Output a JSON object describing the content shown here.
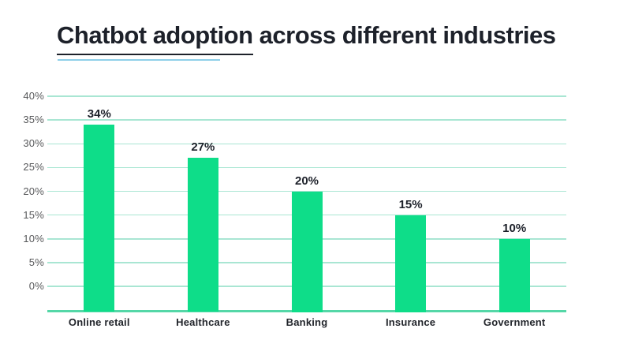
{
  "page": {
    "background_color": "#ffffff"
  },
  "title": {
    "underlined_part": "Chatbot adoption",
    "rest": " across different industries",
    "full_text": "Chatbot adoption across different industries",
    "text_color": "#1d212a",
    "underline_dark_color": "#1d212a",
    "underline_blue_color": "#8ecfe9"
  },
  "chart_data": {
    "type": "bar",
    "title": "Chatbot adoption across different industries",
    "categories": [
      "Online retail",
      "Healthcare",
      "Banking",
      "Insurance",
      "Government"
    ],
    "values": [
      34,
      27,
      20,
      15,
      10
    ],
    "data_labels": [
      "34%",
      "27%",
      "20%",
      "15%",
      "10%"
    ],
    "yticks": [
      40,
      35,
      30,
      25,
      20,
      15,
      10,
      5,
      0
    ],
    "ytick_labels": [
      "40%",
      "35%",
      "30%",
      "25%",
      "20%",
      "15%",
      "10%",
      "5%",
      "0%"
    ],
    "ylim": [
      0,
      40
    ],
    "xlabel": "",
    "ylabel": "",
    "grid": "horizontal",
    "legend": "none",
    "bar_color": "#0edd89",
    "gridline_color": "#a9e6d3",
    "baseline_color": "#54d7a7",
    "ytick_label_color": "#58595b",
    "category_label_color": "#22252b",
    "value_label_color": "#1d212a"
  }
}
